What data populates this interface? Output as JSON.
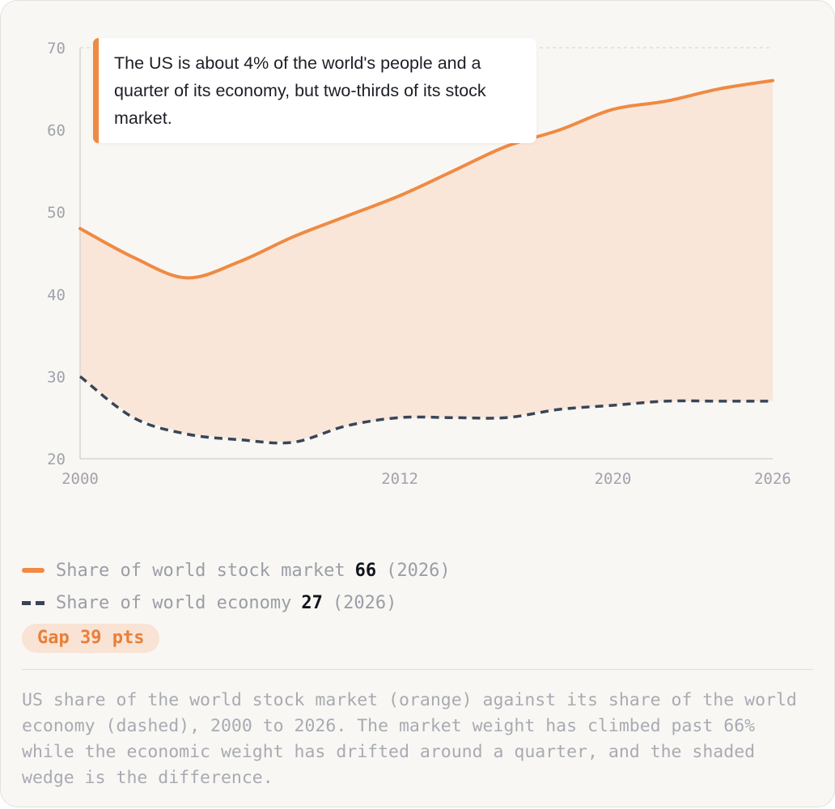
{
  "chart_data": {
    "type": "area",
    "x": [
      2000,
      2002,
      2004,
      2006,
      2008,
      2010,
      2012,
      2014,
      2016,
      2018,
      2020,
      2022,
      2024,
      2026
    ],
    "series": [
      {
        "name": "Share of world stock market",
        "style": "solid",
        "color": "#ef8a43",
        "values": [
          48,
          44.5,
          42,
          44,
          47,
          49.5,
          52,
          55,
          58,
          60,
          62.5,
          63.5,
          65,
          66
        ]
      },
      {
        "name": "Share of world economy",
        "style": "dashed",
        "color": "#394556",
        "values": [
          30,
          25,
          23,
          22.3,
          22,
          24,
          25,
          25,
          25,
          26,
          26.5,
          27,
          27,
          27
        ]
      }
    ],
    "shading": "difference between the two series",
    "fill_color": "#f9e3d4",
    "xlim": [
      2000,
      2026
    ],
    "ylim": [
      20,
      70
    ],
    "x_ticks": [
      {
        "value": 2000,
        "label": "2000"
      },
      {
        "value": 2012,
        "label": "2012"
      },
      {
        "value": 2020,
        "label": "2020"
      },
      {
        "value": 2026,
        "label": "2026"
      }
    ],
    "y_ticks": [
      {
        "value": 70,
        "label": "70"
      },
      {
        "value": 60,
        "label": "60"
      },
      {
        "value": 50,
        "label": "50"
      },
      {
        "value": 40,
        "label": "40"
      },
      {
        "value": 30,
        "label": "30"
      },
      {
        "value": 20,
        "label": "20"
      }
    ],
    "grid": "dashed line at 70 only"
  },
  "annotation": {
    "text": "The US is about 4% of the world's people and a quarter of its economy, but two-thirds of its stock market."
  },
  "legend": {
    "stock_label": "Share of world stock market",
    "stock_value": "66",
    "stock_year": "(2026)",
    "economy_label": "Share of world economy",
    "economy_value": "27",
    "economy_year": "(2026)"
  },
  "gap_badge": "Gap 39 pts",
  "caption": "US share of the world stock market (orange) against its share of the world economy (dashed), 2000 to 2026. The market weight has climbed past 66% while the economic weight has drifted around a quarter, and the shaded wedge is the difference.",
  "colors": {
    "accent": "#ef8a43",
    "economy": "#394556",
    "badge_bg": "#f9e3d4"
  }
}
